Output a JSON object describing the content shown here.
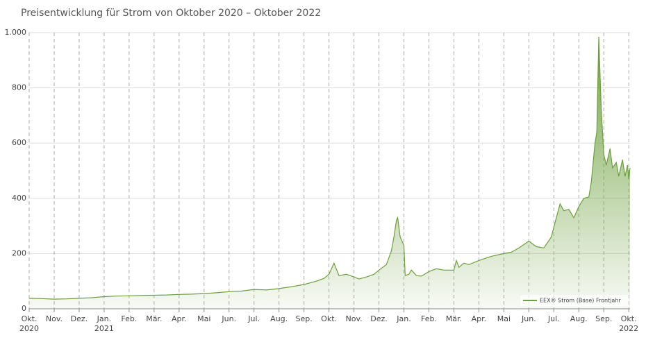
{
  "chart_data": {
    "type": "area",
    "title": "Preisentwicklung für Strom von Oktober 2020 – Oktober 2022",
    "x": [
      0,
      0.5,
      1,
      1.5,
      2,
      2.5,
      3,
      3.5,
      4,
      4.5,
      5,
      5.5,
      6,
      6.5,
      7,
      7.5,
      8,
      8.5,
      9,
      9.5,
      10,
      10.5,
      11,
      11.5,
      11.8,
      12,
      12.2,
      12.4,
      12.7,
      13,
      13.2,
      13.5,
      13.8,
      14,
      14.3,
      14.5,
      14.6,
      14.7,
      14.75,
      14.85,
      15,
      15.05,
      15.2,
      15.3,
      15.5,
      15.7,
      16,
      16.3,
      16.6,
      17,
      17.1,
      17.2,
      17.4,
      17.6,
      18,
      18.5,
      19,
      19.3,
      19.6,
      20,
      20.3,
      20.6,
      20.9,
      21.1,
      21.25,
      21.4,
      21.6,
      21.8,
      22,
      22.2,
      22.4,
      22.5,
      22.65,
      22.72,
      22.8,
      22.9,
      23,
      23.1,
      23.25,
      23.35,
      23.5,
      23.6,
      23.75,
      23.85,
      23.95,
      24,
      24.05
    ],
    "series": [
      {
        "name": "EEX® Strom (Base) Frontjahr",
        "color": "#6c9f3b",
        "values": [
          38,
          37,
          35,
          36,
          38,
          40,
          44,
          46,
          47,
          48,
          49,
          50,
          52,
          53,
          55,
          58,
          62,
          64,
          70,
          68,
          73,
          80,
          88,
          100,
          110,
          125,
          165,
          120,
          125,
          115,
          108,
          115,
          125,
          140,
          160,
          210,
          260,
          320,
          330,
          260,
          230,
          120,
          125,
          140,
          120,
          118,
          135,
          145,
          140,
          140,
          175,
          150,
          165,
          160,
          175,
          190,
          200,
          205,
          220,
          245,
          225,
          220,
          260,
          330,
          380,
          355,
          360,
          330,
          370,
          400,
          405,
          460,
          600,
          640,
          985,
          720,
          560,
          520,
          580,
          510,
          530,
          480,
          540,
          480,
          520,
          470,
          510
        ]
      }
    ],
    "xlim": [
      0,
      24.05
    ],
    "xticks": [
      {
        "value": 0,
        "label": "Okt."
      },
      {
        "value": 1,
        "label": "Nov."
      },
      {
        "value": 2,
        "label": "Dez."
      },
      {
        "value": 3,
        "label": "Jan."
      },
      {
        "value": 4,
        "label": "Feb."
      },
      {
        "value": 5,
        "label": "Mär."
      },
      {
        "value": 6,
        "label": "Apr."
      },
      {
        "value": 7,
        "label": "Mai"
      },
      {
        "value": 8,
        "label": "Jun."
      },
      {
        "value": 9,
        "label": "Jul."
      },
      {
        "value": 10,
        "label": "Aug."
      },
      {
        "value": 11,
        "label": "Sep."
      },
      {
        "value": 12,
        "label": "Okt."
      },
      {
        "value": 13,
        "label": "Nov."
      },
      {
        "value": 14,
        "label": "Dez."
      },
      {
        "value": 15,
        "label": "Jan."
      },
      {
        "value": 16,
        "label": "Feb."
      },
      {
        "value": 17,
        "label": "Mär."
      },
      {
        "value": 18,
        "label": "Apr."
      },
      {
        "value": 19,
        "label": "Mai"
      },
      {
        "value": 20,
        "label": "Jun."
      },
      {
        "value": 21,
        "label": "Jul."
      },
      {
        "value": 22,
        "label": "Aug."
      },
      {
        "value": 23,
        "label": "Sep."
      },
      {
        "value": 24,
        "label": "Okt."
      }
    ],
    "year_labels": [
      {
        "value": 0,
        "label": "2020"
      },
      {
        "value": 3,
        "label": "2021"
      },
      {
        "value": 24,
        "label": "2022"
      }
    ],
    "ylim": [
      0,
      1000
    ],
    "yticks": [
      0,
      200,
      400,
      600,
      800,
      {
        "value": 1000,
        "label": "1.000"
      }
    ],
    "grid": true,
    "legend": "lower right"
  }
}
